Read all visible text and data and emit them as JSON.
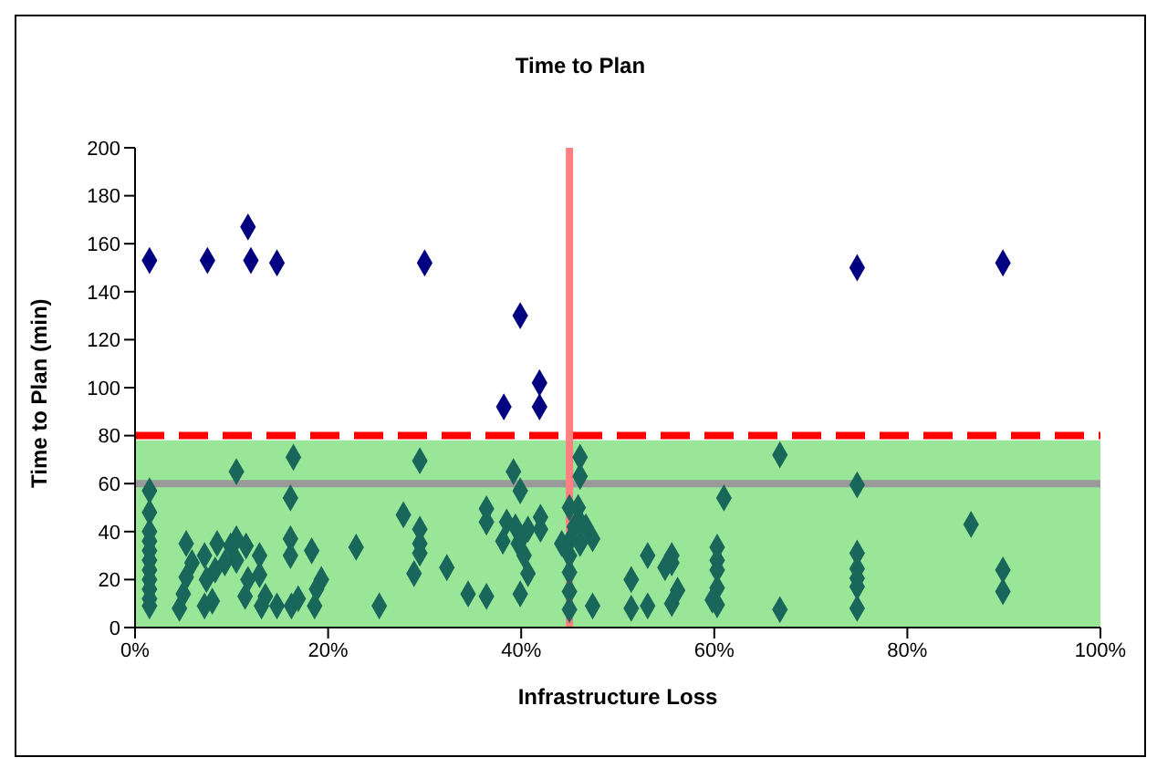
{
  "chart_data": {
    "type": "scatter",
    "title": "Time to Plan",
    "xlabel": "Infrastructure Loss",
    "ylabel": "Time to Plan (min)",
    "marker": "diamond",
    "xlim": [
      0,
      100
    ],
    "xticks": [
      {
        "value": 0,
        "label": "0%"
      },
      {
        "value": 20,
        "label": "20%"
      },
      {
        "value": 40,
        "label": "40%"
      },
      {
        "value": 60,
        "label": "60%"
      },
      {
        "value": 80,
        "label": "80%"
      },
      {
        "value": 100,
        "label": "100%"
      }
    ],
    "ylim": [
      0,
      200
    ],
    "yticks": [
      0,
      20,
      40,
      60,
      80,
      100,
      120,
      140,
      160,
      180,
      200
    ],
    "series": [
      {
        "color": "#000080",
        "x": [
          1.5,
          7.5,
          11.7,
          12,
          14.7,
          30,
          39.9,
          38.2,
          41.9,
          41.9,
          74.8,
          89.9
        ],
        "values": [
          153,
          153,
          167,
          153,
          152,
          152,
          130,
          92,
          102,
          92,
          150,
          152
        ]
      },
      {
        "color": "#19665a",
        "x": [
          16.4,
          29.5,
          10.5,
          1.5,
          1.5,
          16.1,
          27.8,
          29.5,
          29.5,
          29.5,
          1.5,
          1.5,
          1.5,
          1.5,
          1.5,
          1.5,
          1.5,
          1.5,
          1.5,
          5.3,
          5.9,
          7.2,
          8.5,
          9.9,
          10.5,
          11.5,
          10.5,
          9.3,
          8.3,
          7.4,
          5.3,
          5,
          4.6,
          7.2,
          8,
          11.4,
          12.9,
          12.9,
          11.7,
          13.5,
          13.1,
          14.7,
          16.2,
          16.9,
          16.1,
          16.1,
          18.3,
          19.3,
          18.8,
          18.6,
          22.9,
          25.3,
          28.9,
          32.3,
          34.5,
          36.4,
          39.9,
          39.2,
          39.9,
          36.4,
          36.4,
          38.5,
          39.4,
          40.7,
          42,
          42,
          38.1,
          39.7,
          40.3,
          40.7,
          40,
          46.1,
          46.1,
          45,
          45.9,
          46.1,
          45.5,
          46.7,
          47.4,
          45,
          46.1,
          45,
          45,
          45,
          45,
          44.2,
          47.4,
          53.1,
          51.4,
          55.6,
          55.6,
          54.9,
          56.2,
          55.6,
          51.4,
          53.1,
          60.3,
          60.3,
          60.3,
          60.3,
          59.8,
          60.3,
          61,
          66.8,
          66.8,
          74.8,
          74.8,
          74.8,
          74.8,
          74.8,
          74.8,
          86.6,
          89.9,
          89.9
        ],
        "values": [
          71,
          69.5,
          65,
          57,
          48,
          54,
          47,
          41,
          35,
          31,
          40,
          36,
          32,
          28,
          24,
          20,
          16,
          12,
          9,
          35,
          27,
          30,
          35,
          34,
          37,
          34,
          28,
          27,
          24,
          20,
          21,
          14,
          8,
          9,
          11,
          13,
          30,
          22,
          20,
          13,
          9,
          9,
          9,
          12,
          37,
          30,
          32,
          20,
          16,
          9,
          33.5,
          9,
          22.5,
          25,
          14,
          13,
          14,
          65,
          57,
          49.5,
          44,
          44,
          42,
          41,
          46,
          41,
          36,
          35,
          30,
          22.5,
          37,
          71,
          63,
          50,
          50,
          44,
          42,
          42,
          37,
          36,
          35,
          30,
          23,
          15,
          7.5,
          35,
          9,
          30,
          20,
          30,
          27,
          25,
          15.5,
          10,
          8,
          9,
          33.5,
          28,
          24,
          16.5,
          11.5,
          9.5,
          54,
          72,
          7.5,
          59.5,
          31,
          24.5,
          20.5,
          17,
          8,
          43,
          24,
          15
        ]
      }
    ],
    "bands": [
      {
        "axis": "y",
        "from": 0,
        "to": 78,
        "color": "#99e699"
      }
    ],
    "ref_lines": [
      {
        "axis": "y",
        "value": 80,
        "color": "#ff0000",
        "line_style": "dashed"
      },
      {
        "axis": "y",
        "value": 60,
        "color": "#999999",
        "line_style": "solid"
      },
      {
        "axis": "x",
        "value": 45,
        "color": "#ff8080",
        "line_style": "solid"
      }
    ]
  }
}
